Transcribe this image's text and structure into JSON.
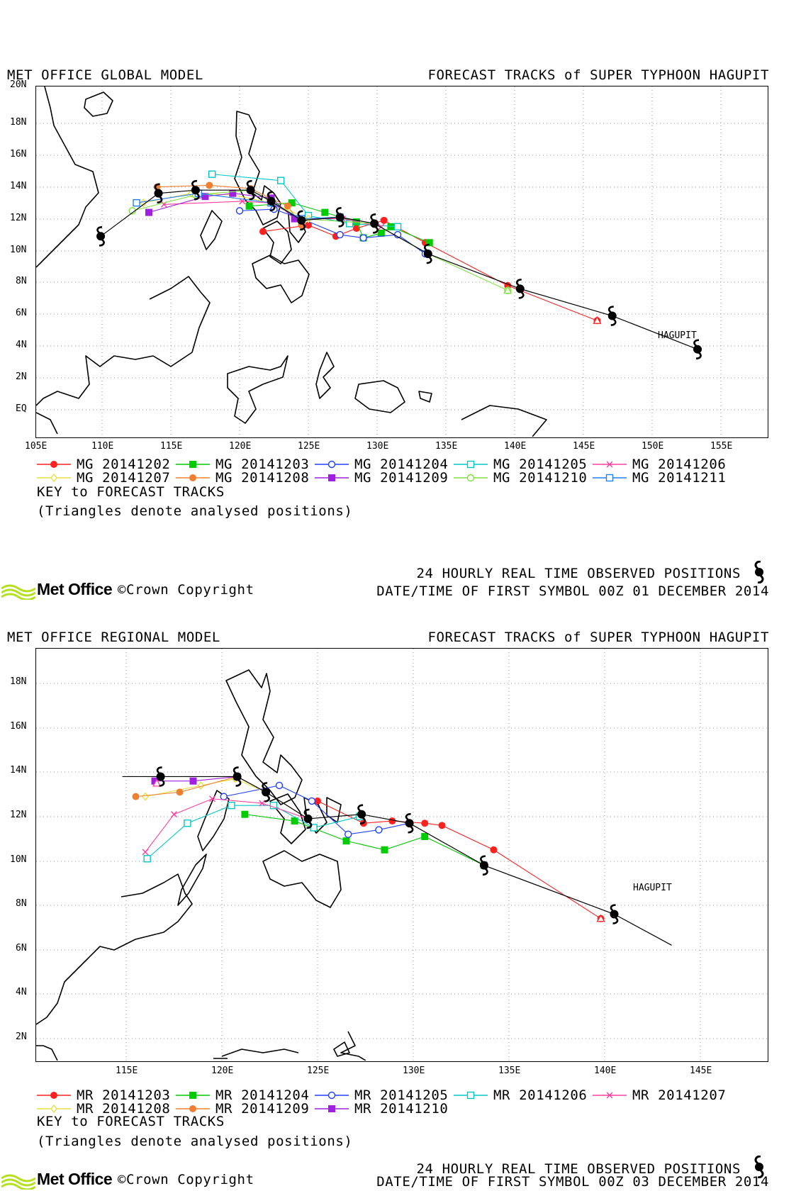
{
  "panels": [
    {
      "model_title": "MET OFFICE GLOBAL MODEL",
      "forecast_title": "FORECAST TRACKS of SUPER TYPHOON HAGUPIT",
      "lat_labels": [
        "20N",
        "18N",
        "16N",
        "14N",
        "12N",
        "10N",
        "8N",
        "6N",
        "4N",
        "2N",
        "EQ"
      ],
      "lon_labels": [
        "105E",
        "110E",
        "115E",
        "120E",
        "125E",
        "130E",
        "135E",
        "140E",
        "145E",
        "150E",
        "155E"
      ],
      "storm_label": "HAGUPIT",
      "legend": [
        {
          "label": "MG 20141202",
          "color": "#ff2020",
          "marker": "filled-circle"
        },
        {
          "label": "MG 20141203",
          "color": "#00cc00",
          "marker": "filled-square"
        },
        {
          "label": "MG 20141204",
          "color": "#2040ff",
          "marker": "open-circle"
        },
        {
          "label": "MG 20141205",
          "color": "#00c8c8",
          "marker": "open-square"
        },
        {
          "label": "MG 20141206",
          "color": "#ff40a0",
          "marker": "cross"
        },
        {
          "label": "MG 20141207",
          "color": "#e8e040",
          "marker": "diamond"
        },
        {
          "label": "MG 20141208",
          "color": "#f08030",
          "marker": "filled-circle"
        },
        {
          "label": "MG 20141209",
          "color": "#a020e0",
          "marker": "filled-square"
        },
        {
          "label": "MG 20141210",
          "color": "#80e040",
          "marker": "open-circle"
        },
        {
          "label": "MG 20141211",
          "color": "#2080ff",
          "marker": "open-square"
        }
      ],
      "key_title": "KEY to FORECAST TRACKS",
      "key_note": "(Triangles denote analysed positions)",
      "observed_label": "24 HOURLY REAL TIME OBSERVED POSITIONS",
      "first_symbol": "DATE/TIME OF FIRST SYMBOL 00Z 01 DECEMBER 2014",
      "observed_positions": [
        [
          153.3,
          3.8
        ],
        [
          147.1,
          5.9
        ],
        [
          140.4,
          7.6
        ],
        [
          133.7,
          9.8
        ],
        [
          129.8,
          11.7
        ],
        [
          127.3,
          12.1
        ],
        [
          124.5,
          11.9
        ],
        [
          122.3,
          13.1
        ],
        [
          120.8,
          13.8
        ],
        [
          116.8,
          13.8
        ],
        [
          114.1,
          13.6
        ],
        [
          109.9,
          10.9
        ]
      ]
    },
    {
      "model_title": "MET OFFICE REGIONAL MODEL",
      "forecast_title": "FORECAST TRACKS of SUPER TYPHOON HAGUPIT",
      "lat_labels": [
        "18N",
        "16N",
        "14N",
        "12N",
        "10N",
        "8N",
        "6N",
        "4N",
        "2N"
      ],
      "lon_labels": [
        "115E",
        "120E",
        "125E",
        "130E",
        "135E",
        "140E",
        "145E"
      ],
      "storm_label": "HAGUPIT",
      "legend": [
        {
          "label": "MR 20141203",
          "color": "#ff2020",
          "marker": "filled-circle"
        },
        {
          "label": "MR 20141204",
          "color": "#00cc00",
          "marker": "filled-square"
        },
        {
          "label": "MR 20141205",
          "color": "#2040ff",
          "marker": "open-circle"
        },
        {
          "label": "MR 20141206",
          "color": "#00c8c8",
          "marker": "open-square"
        },
        {
          "label": "MR 20141207",
          "color": "#ff40a0",
          "marker": "cross"
        },
        {
          "label": "MR 20141208",
          "color": "#e8e040",
          "marker": "diamond"
        },
        {
          "label": "MR 20141209",
          "color": "#f08030",
          "marker": "filled-circle"
        },
        {
          "label": "MR 20141210",
          "color": "#a020e0",
          "marker": "filled-square"
        }
      ],
      "key_title": "KEY to FORECAST TRACKS",
      "key_note": "(Triangles denote analysed positions)",
      "observed_label": "24 HOURLY REAL TIME OBSERVED POSITIONS",
      "first_symbol": "DATE/TIME OF FIRST SYMBOL 00Z 03 DECEMBER 2014",
      "observed_positions": [
        [
          140.5,
          7.6
        ],
        [
          133.7,
          9.8
        ],
        [
          129.8,
          11.7
        ],
        [
          127.3,
          12.1
        ],
        [
          124.5,
          11.9
        ],
        [
          122.3,
          13.1
        ],
        [
          120.8,
          13.8
        ],
        [
          116.8,
          13.8
        ]
      ]
    }
  ],
  "branding": {
    "brand": "Met Office",
    "copyright": "©Crown Copyright"
  }
}
